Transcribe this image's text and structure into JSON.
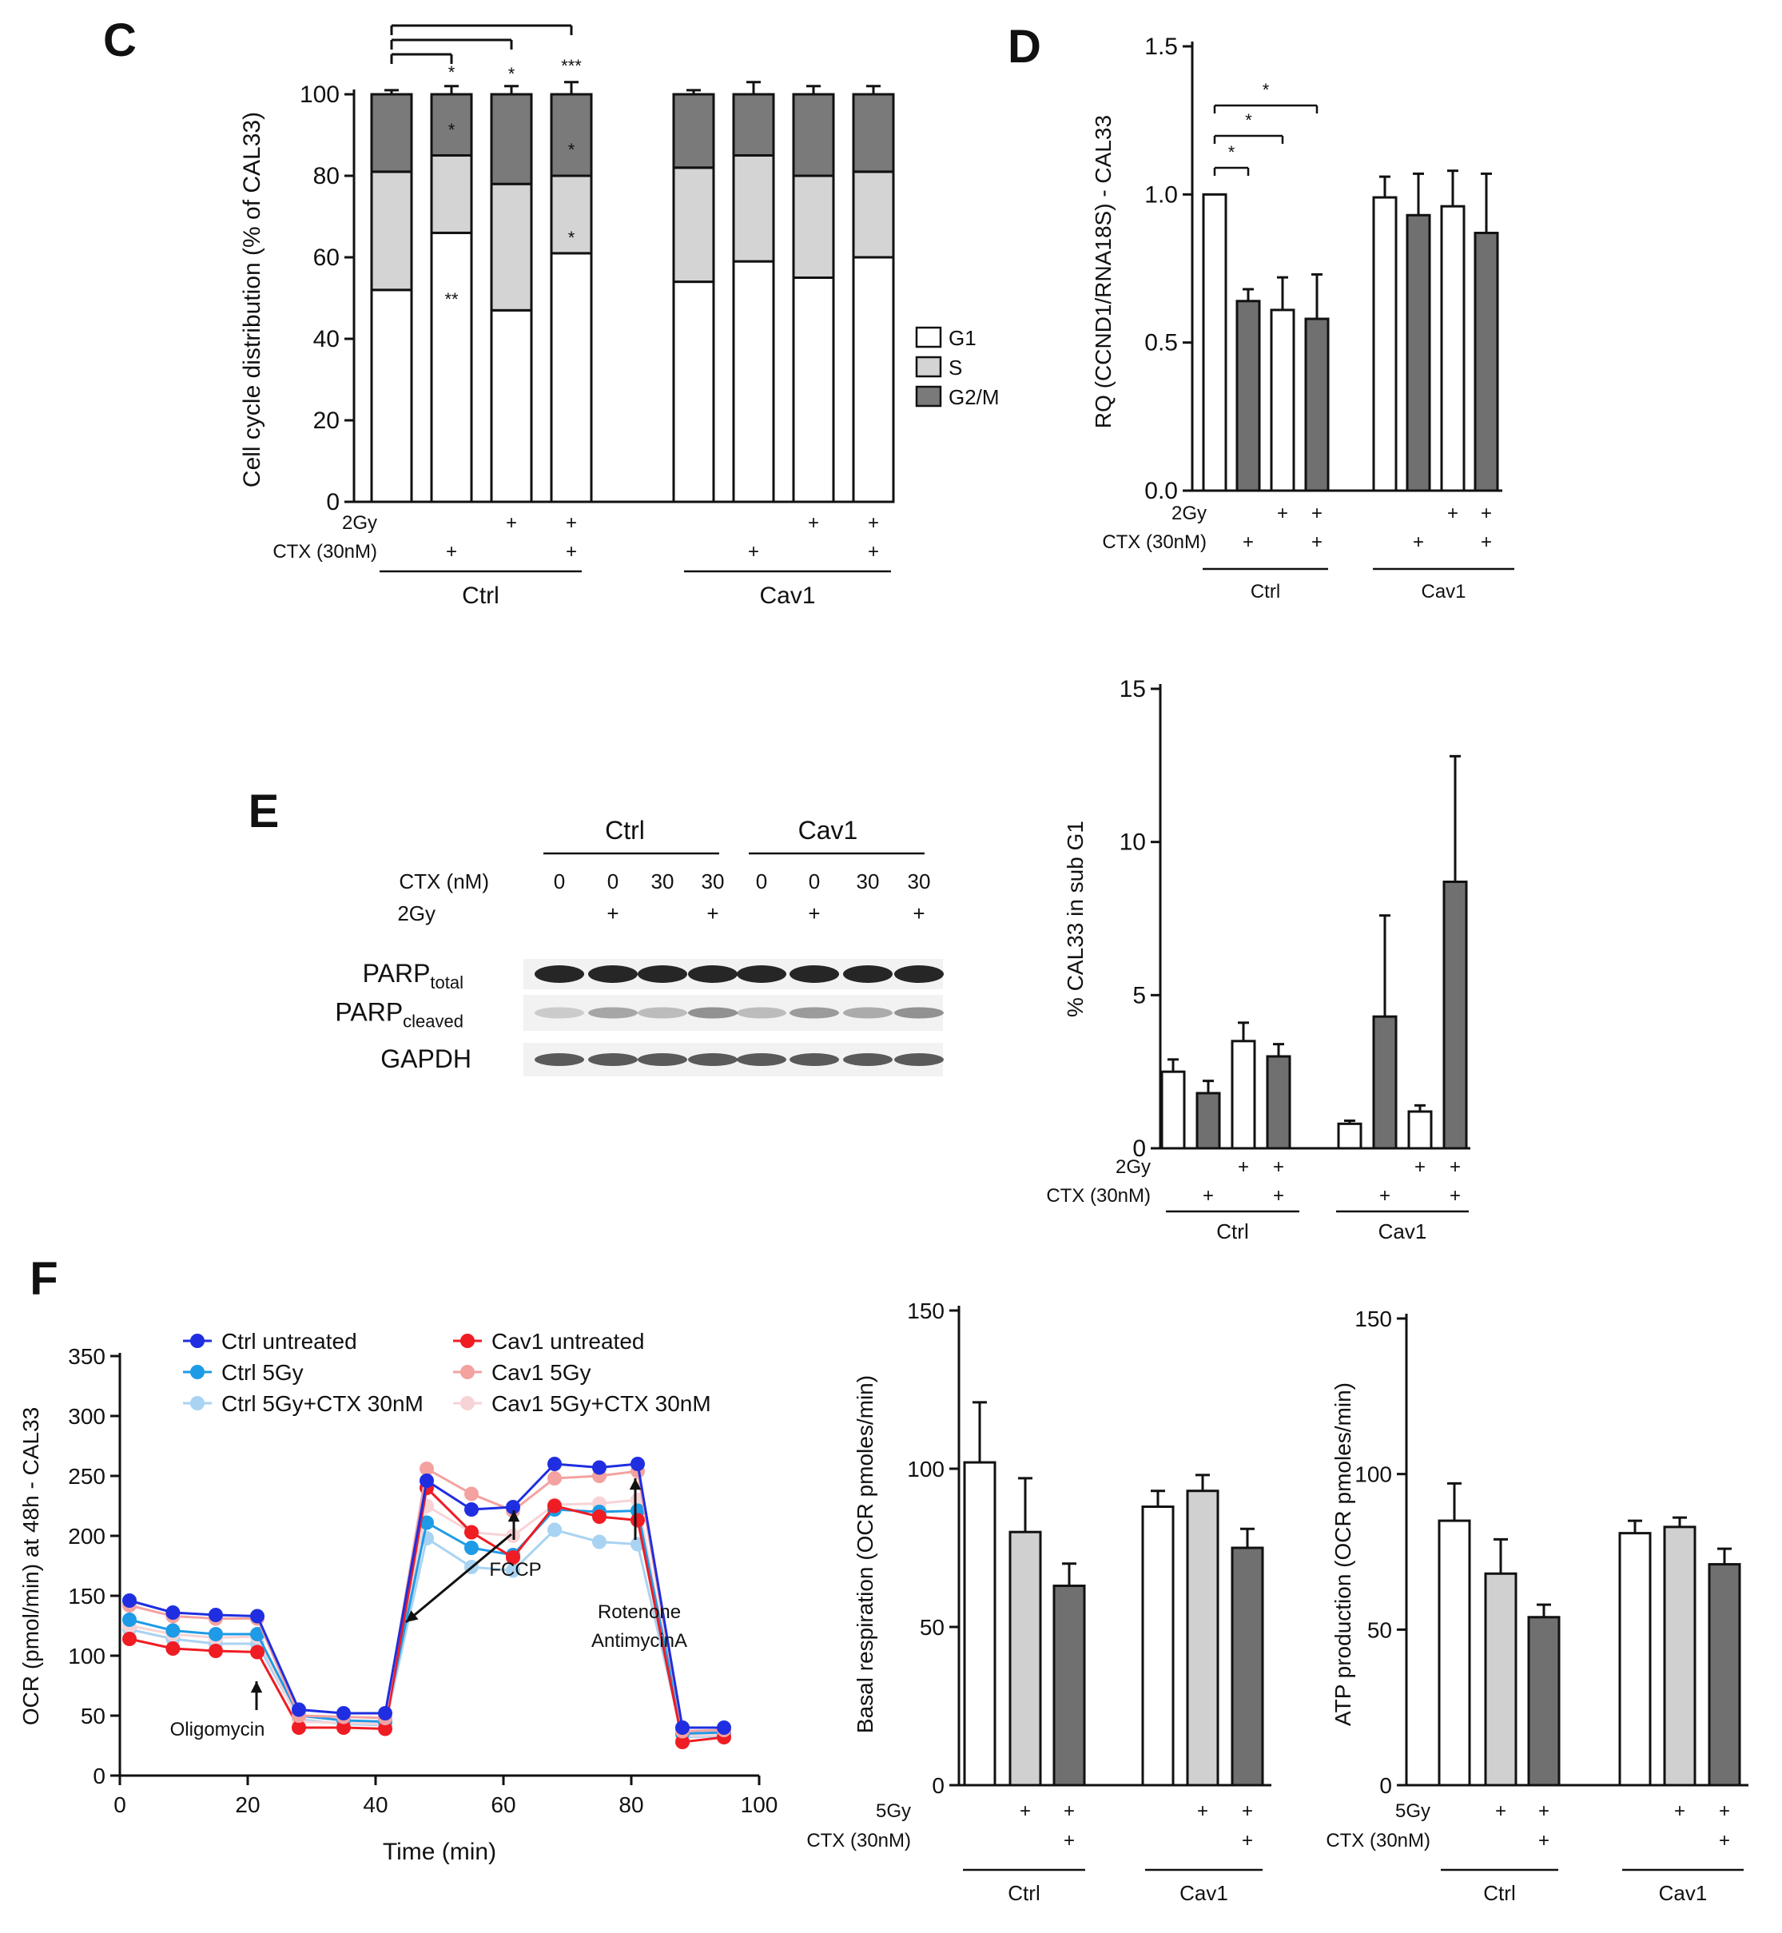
{
  "panels": {
    "C": {
      "letter": "C",
      "ylabel": "Cell cycle distribution (% of CAL33)",
      "yticks": [
        "0",
        "20",
        "40",
        "60",
        "80",
        "100"
      ],
      "treat_labels": [
        "2Gy",
        "CTX (30nM)"
      ],
      "group_labels": [
        "Ctrl",
        "Cav1"
      ],
      "legend": [
        "G1",
        "S",
        "G2/M"
      ]
    },
    "D": {
      "letter": "D",
      "ylabel": "RQ (CCND1/RNA18S) - CAL33",
      "yticks": [
        "0.0",
        "0.5",
        "1.0",
        "1.5"
      ],
      "treat_labels": [
        "2Gy",
        "CTX (30nM)"
      ],
      "group_labels": [
        "Ctrl",
        "Cav1"
      ]
    },
    "E": {
      "letter": "E",
      "group_labels": [
        "Ctrl",
        "Cav1"
      ],
      "ctx_label": "CTX (nM)",
      "ctx_values": [
        "0",
        "0",
        "30",
        "30",
        "0",
        "0",
        "30",
        "30"
      ],
      "gy_label": "2Gy",
      "gy_marks": [
        "",
        "+",
        "",
        "+",
        "",
        "+",
        "",
        "+"
      ],
      "blot_rows": [
        {
          "main": "PARP",
          "sub": "total"
        },
        {
          "main": "PARP",
          "sub": "cleaved"
        },
        {
          "main": "GAPDH",
          "sub": ""
        }
      ]
    },
    "subG1": {
      "ylabel": "% CAL33 in sub G1",
      "yticks": [
        "0",
        "5",
        "10",
        "15"
      ],
      "treat_labels": [
        "2Gy",
        "CTX (30nM)"
      ],
      "group_labels": [
        "Ctrl",
        "Cav1"
      ]
    },
    "F": {
      "letter": "F",
      "ylabel": "OCR (pmol/min) at 48h - CAL33",
      "xlabel": "Time (min)",
      "yticks": [
        "0",
        "50",
        "100",
        "150",
        "200",
        "250",
        "300",
        "350"
      ],
      "xticks": [
        "0",
        "20",
        "40",
        "60",
        "80",
        "100"
      ],
      "legend": [
        "Ctrl untreated",
        "Ctrl 5Gy",
        "Ctrl 5Gy+CTX 30nM",
        "Cav1 untreated",
        "Cav1 5Gy",
        "Cav1 5Gy+CTX 30nM"
      ],
      "annotations": [
        "Oligomycin",
        "FCCP",
        "Rotenone",
        "AntimycinA"
      ]
    },
    "basal": {
      "ylabel": "Basal respiration (OCR pmoles/min)",
      "yticks": [
        "0",
        "50",
        "100",
        "150"
      ],
      "treat_labels": [
        "5Gy",
        "CTX (30nM)"
      ],
      "group_labels": [
        "Ctrl",
        "Cav1"
      ]
    },
    "atp": {
      "ylabel": "ATP production (OCR pmoles/min)",
      "yticks": [
        "0",
        "50",
        "100",
        "150"
      ],
      "treat_labels": [
        "5Gy",
        "CTX (30nM)"
      ],
      "group_labels": [
        "Ctrl",
        "Cav1"
      ]
    }
  },
  "colors": {
    "g1": "#ffffff",
    "s": "#d4d4d4",
    "g2m": "#7a7a7a",
    "open": "#ffffff",
    "dark": "#707070",
    "light": "#d0d0d0",
    "ctrl_untreated": "#1f2ee0",
    "ctrl_5gy": "#1e9be6",
    "ctrl_5gy_ctx": "#a9d3f2",
    "cav1_untreated": "#ef1c24",
    "cav1_5gy": "#f3a2a0",
    "cav1_5gy_ctx": "#f8d3d6"
  },
  "chart_data": [
    {
      "id": "C",
      "type": "bar",
      "stacked": true,
      "ylabel": "Cell cycle distribution (% of CAL33)",
      "ylim": [
        0,
        100
      ],
      "categories": [
        "Ctrl",
        "Ctrl CTX",
        "Ctrl 2Gy",
        "Ctrl 2Gy+CTX",
        "Cav1",
        "Cav1 CTX",
        "Cav1 2Gy",
        "Cav1 2Gy+CTX"
      ],
      "treatments": {
        "2Gy": [
          "",
          "",
          "+",
          "+",
          "",
          "",
          "+",
          "+"
        ],
        "CTX (30nM)": [
          "",
          "+",
          "",
          "+",
          "",
          "+",
          "",
          "+"
        ]
      },
      "series": [
        {
          "name": "G1",
          "values": [
            52,
            66,
            47,
            61,
            54,
            59,
            55,
            60
          ],
          "errors": [
            5,
            6,
            4,
            1,
            2,
            10,
            6,
            8
          ]
        },
        {
          "name": "S",
          "values": [
            29,
            19,
            31,
            19,
            28,
            26,
            25,
            21
          ],
          "errors": [
            4,
            3,
            3,
            4,
            3,
            12,
            5,
            8
          ]
        },
        {
          "name": "G2/M",
          "values": [
            19,
            15,
            22,
            20,
            18,
            15,
            20,
            19
          ],
          "errors": [
            1,
            2,
            2,
            3,
            1,
            3,
            2,
            2
          ]
        }
      ],
      "significance": [
        {
          "bar": 1,
          "stack": "G1",
          "label": "**"
        },
        {
          "bar": 1,
          "stack": "S",
          "label": "*"
        },
        {
          "bar": 3,
          "stack": "G1",
          "label": "*"
        },
        {
          "bar": 3,
          "stack": "S",
          "label": "*"
        },
        {
          "bar": 1,
          "stack": "top",
          "label": "*"
        },
        {
          "bar": 2,
          "stack": "top",
          "label": "*"
        },
        {
          "bar": 3,
          "stack": "top",
          "label": "***"
        }
      ],
      "legend": [
        "G1",
        "S",
        "G2/M"
      ],
      "legend_position": "right"
    },
    {
      "id": "D",
      "type": "bar",
      "ylabel": "RQ (CCND1/RNA18S) - CAL33",
      "ylim": [
        0,
        1.5
      ],
      "categories": [
        "Ctrl",
        "Ctrl CTX",
        "Ctrl 2Gy",
        "Ctrl 2Gy+CTX",
        "Cav1",
        "Cav1 CTX",
        "Cav1 2Gy",
        "Cav1 2Gy+CTX"
      ],
      "treatments": {
        "2Gy": [
          "",
          "",
          "+",
          "+",
          "",
          "",
          "+",
          "+"
        ],
        "CTX (30nM)": [
          "",
          "+",
          "",
          "+",
          "",
          "+",
          "",
          "+"
        ]
      },
      "values": [
        1.0,
        0.64,
        0.61,
        0.58,
        0.99,
        0.93,
        0.96,
        0.87
      ],
      "errors": [
        0,
        0.04,
        0.11,
        0.15,
        0.07,
        0.14,
        0.12,
        0.2
      ],
      "significance": [
        {
          "from": 0,
          "to": 1,
          "label": "*"
        },
        {
          "from": 0,
          "to": 2,
          "label": "*"
        },
        {
          "from": 0,
          "to": 3,
          "label": "*"
        }
      ]
    },
    {
      "id": "subG1",
      "type": "bar",
      "ylabel": "% CAL33 in sub G1",
      "ylim": [
        0,
        15
      ],
      "categories": [
        "Ctrl",
        "Ctrl CTX",
        "Ctrl 2Gy",
        "Ctrl 2Gy+CTX",
        "Cav1",
        "Cav1 CTX",
        "Cav1 2Gy",
        "Cav1 2Gy+CTX"
      ],
      "treatments": {
        "2Gy": [
          "",
          "",
          "+",
          "+",
          "",
          "",
          "+",
          "+"
        ],
        "CTX (30nM)": [
          "",
          "+",
          "",
          "+",
          "",
          "+",
          "",
          "+"
        ]
      },
      "values": [
        2.5,
        1.8,
        3.5,
        3.0,
        0.8,
        4.3,
        1.2,
        8.7
      ],
      "errors": [
        0.4,
        0.4,
        0.6,
        0.4,
        0.1,
        3.3,
        0.2,
        4.1
      ]
    },
    {
      "id": "F",
      "type": "line",
      "xlabel": "Time (min)",
      "ylabel": "OCR (pmol/min) at 48h - CAL33",
      "xlim": [
        0,
        100
      ],
      "ylim": [
        0,
        350
      ],
      "x": [
        1.5,
        8.3,
        15,
        21.5,
        28,
        35,
        41.5,
        48,
        55,
        61.5,
        68,
        75,
        81,
        88,
        94.5
      ],
      "series": [
        {
          "name": "Ctrl untreated",
          "values": [
            146,
            136,
            134,
            133,
            55,
            52,
            52,
            246,
            222,
            224,
            260,
            257,
            260,
            40,
            40
          ]
        },
        {
          "name": "Ctrl 5Gy",
          "values": [
            130,
            121,
            118,
            118,
            50,
            46,
            45,
            211,
            190,
            184,
            222,
            220,
            221,
            35,
            36
          ]
        },
        {
          "name": "Ctrl 5Gy+CTX 30nM",
          "values": [
            122,
            114,
            110,
            110,
            47,
            43,
            42,
            198,
            174,
            171,
            205,
            195,
            193,
            32,
            33
          ]
        },
        {
          "name": "Cav1 untreated",
          "values": [
            114,
            106,
            104,
            103,
            40,
            40,
            39,
            240,
            203,
            182,
            225,
            216,
            213,
            28,
            32
          ]
        },
        {
          "name": "Cav1 5Gy",
          "values": [
            142,
            133,
            131,
            131,
            50,
            49,
            48,
            256,
            235,
            221,
            248,
            250,
            254,
            37,
            38
          ]
        },
        {
          "name": "Cav1 5Gy+CTX 30nM",
          "values": [
            125,
            118,
            115,
            116,
            45,
            44,
            43,
            225,
            203,
            200,
            226,
            227,
            230,
            33,
            34
          ]
        }
      ],
      "annotations": [
        {
          "label": "Oligomycin",
          "x": 21
        },
        {
          "label": "FCCP",
          "x": 61.5
        },
        {
          "label": "Rotenone AntimycinA",
          "x": 80.5
        }
      ],
      "legend_position": "top"
    },
    {
      "id": "basal",
      "type": "bar",
      "ylabel": "Basal respiration (OCR pmoles/min)",
      "ylim": [
        0,
        150
      ],
      "categories": [
        "Ctrl",
        "Ctrl 5Gy",
        "Ctrl 5Gy+CTX",
        "Cav1",
        "Cav1 5Gy",
        "Cav1 5Gy+CTX"
      ],
      "treatments": {
        "5Gy": [
          "",
          "+",
          "+",
          "",
          "+",
          "+"
        ],
        "CTX (30nM)": [
          "",
          "",
          "+",
          "",
          "",
          "+"
        ]
      },
      "values": [
        102,
        80,
        63,
        88,
        93,
        75
      ],
      "errors": [
        19,
        17,
        7,
        5,
        5,
        6
      ]
    },
    {
      "id": "atp",
      "type": "bar",
      "ylabel": "ATP production (OCR pmoles/min)",
      "ylim": [
        0,
        150
      ],
      "categories": [
        "Ctrl",
        "Ctrl 5Gy",
        "Ctrl 5Gy+CTX",
        "Cav1",
        "Cav1 5Gy",
        "Cav1 5Gy+CTX"
      ],
      "treatments": {
        "5Gy": [
          "",
          "+",
          "+",
          "",
          "+",
          "+"
        ],
        "CTX (30nM)": [
          "",
          "",
          "+",
          "",
          "",
          "+"
        ]
      },
      "values": [
        85,
        68,
        54,
        81,
        83,
        71
      ],
      "errors": [
        12,
        11,
        4,
        4,
        3,
        5
      ]
    }
  ]
}
